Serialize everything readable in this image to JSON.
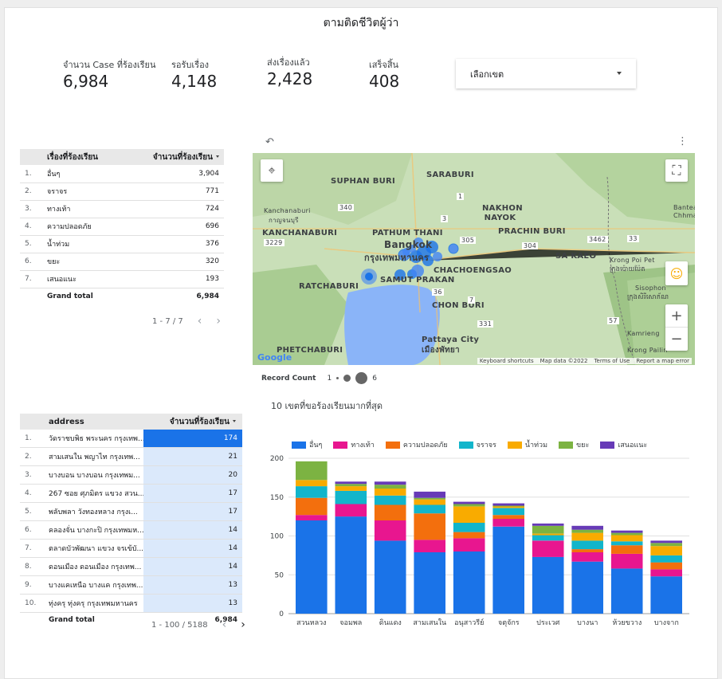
{
  "title": "ตามติดชีวิตผู้ว่า",
  "kpis": [
    {
      "label": "จำนวน Case ที่ร้องเรียน",
      "value": "6,984"
    },
    {
      "label": "รอรับเรื่อง",
      "value": "4,148"
    },
    {
      "label": "ส่งเรื่องแล้ว",
      "value": "2,428"
    },
    {
      "label": "เสร็จสิ้น",
      "value": "408"
    }
  ],
  "district_filter": {
    "label": "เลือกเขต"
  },
  "complaints_table": {
    "headers": [
      "เรื่องที่ร้องเรียน",
      "จำนวนที่ร้องเรียน"
    ],
    "rows": [
      {
        "idx": "1.",
        "topic": "อื่นๆ",
        "count": "3,904"
      },
      {
        "idx": "2.",
        "topic": "จราจร",
        "count": "771"
      },
      {
        "idx": "3.",
        "topic": "ทางเท้า",
        "count": "724"
      },
      {
        "idx": "4.",
        "topic": "ความปลอดภัย",
        "count": "696"
      },
      {
        "idx": "5.",
        "topic": "น้ำท่วม",
        "count": "376"
      },
      {
        "idx": "6.",
        "topic": "ขยะ",
        "count": "320"
      },
      {
        "idx": "7.",
        "topic": "เสนอแนะ",
        "count": "193"
      }
    ],
    "total_label": "Grand total",
    "total_value": "6,984",
    "pagination": "1 - 7 / 7"
  },
  "map": {
    "labels": [
      "SUPHAN BURI",
      "SARABURI",
      "Kanchanaburi",
      "กาญจนบุรี",
      "KANCHANABURI",
      "PATHUM THANI",
      "NAKHON NAYOK",
      "PRACHIN BURI",
      "Bangkok",
      "กรุงเทพมหานคร",
      "CHACHOENGSAO",
      "SA KAEO",
      "RATCHABURI",
      "SAMUT PRAKAN",
      "CHON BURI",
      "PHETCHABURI",
      "Pattaya City",
      "เมืองพัทยา",
      "Krong Poi Pet",
      "ក្រុងប៉ោយប៉ែត",
      "Sisophon",
      "ក្រុងសិរីសោភ័ណ",
      "Kamrieng",
      "Krong Pailin",
      "Bantea Chhma"
    ],
    "route_labels": [
      "3229",
      "340",
      "1",
      "305",
      "304",
      "3462",
      "33",
      "3",
      "331",
      "36",
      "57",
      "7"
    ],
    "google": "Google",
    "footer": [
      "Keyboard shortcuts",
      "Map data ©2022",
      "Terms of Use",
      "Report a map error"
    ],
    "record_count_label": "Record Count",
    "legend_min": "1",
    "legend_max": "6"
  },
  "address_table": {
    "headers": [
      "address",
      "จำนวนที่ร้องเรียน"
    ],
    "rows": [
      {
        "idx": "1.",
        "address": "วัดราชบพิธ พระนคร กรุงเทพ...",
        "count": "174",
        "ratio": 1.0
      },
      {
        "idx": "2.",
        "address": "สามเสนใน พญาไท กรุงเทพ...",
        "count": "21",
        "ratio": 0.12
      },
      {
        "idx": "3.",
        "address": "บางบอน บางบอน กรุงเทพม...",
        "count": "20",
        "ratio": 0.115
      },
      {
        "idx": "4.",
        "address": "267 ซอย ศุภมิตร แขวง สวน...",
        "count": "17",
        "ratio": 0.098
      },
      {
        "idx": "5.",
        "address": "พลับพลา วังทองหลาง กรุงเ...",
        "count": "17",
        "ratio": 0.098
      },
      {
        "idx": "6.",
        "address": "คลองจั่น บางกะปิ กรุงเทพมห...",
        "count": "14",
        "ratio": 0.08
      },
      {
        "idx": "7.",
        "address": "ตลาดบัวพัฒนา แขวง จรเข้บั...",
        "count": "14",
        "ratio": 0.08
      },
      {
        "idx": "8.",
        "address": "ดอนเมือง ดอนเมือง กรุงเทพ...",
        "count": "14",
        "ratio": 0.08
      },
      {
        "idx": "9.",
        "address": "บางแคเหนือ บางแค กรุงเทพ...",
        "count": "13",
        "ratio": 0.075
      },
      {
        "idx": "10.",
        "address": "ทุ่งครุ ทุ่งครุ กรุงเทพมหานคร",
        "count": "13",
        "ratio": 0.075
      }
    ],
    "total_label": "Grand total",
    "total_value": "6,984",
    "pagination": "1 - 100 / 5188"
  },
  "chart_data": {
    "type": "bar",
    "stacked": true,
    "title": "10 เขตที่ขอร้องเรียนมากที่สุด",
    "categories": [
      "สวนหลวง",
      "จอมพล",
      "ดินแดง",
      "สามเสนใน",
      "อนุสาวรีย์",
      "จตุจักร",
      "ประเวศ",
      "บางนา",
      "ห้วยขวาง",
      "บางจาก"
    ],
    "ylim": [
      0,
      200
    ],
    "yticks": [
      0,
      50,
      100,
      150,
      200
    ],
    "legend_position": "top",
    "grid": true,
    "series": [
      {
        "name": "อื่นๆ",
        "color": "#1a73e8",
        "values": [
          120,
          125,
          94,
          79,
          80,
          112,
          73,
          67,
          58,
          48
        ]
      },
      {
        "name": "ทางเท้า",
        "color": "#e8168f",
        "values": [
          7,
          16,
          26,
          16,
          17,
          10,
          21,
          12,
          19,
          9
        ]
      },
      {
        "name": "ความปลอดภัย",
        "color": "#f36f0d",
        "values": [
          22,
          0,
          20,
          34,
          8,
          5,
          0,
          4,
          11,
          9
        ]
      },
      {
        "name": "จราจร",
        "color": "#12b5cb",
        "values": [
          15,
          17,
          12,
          11,
          12,
          9,
          7,
          11,
          5,
          9
        ]
      },
      {
        "name": "น้ำท่วม",
        "color": "#f9ab00",
        "values": [
          8,
          6,
          9,
          7,
          21,
          2,
          2,
          10,
          8,
          12
        ]
      },
      {
        "name": "ขยะ",
        "color": "#7cb342",
        "values": [
          24,
          3,
          5,
          2,
          3,
          1,
          10,
          4,
          3,
          4
        ]
      },
      {
        "name": "เสนอแนะ",
        "color": "#673ab7",
        "values": [
          0,
          3,
          4,
          8,
          3,
          3,
          3,
          5,
          3,
          3
        ]
      }
    ]
  }
}
